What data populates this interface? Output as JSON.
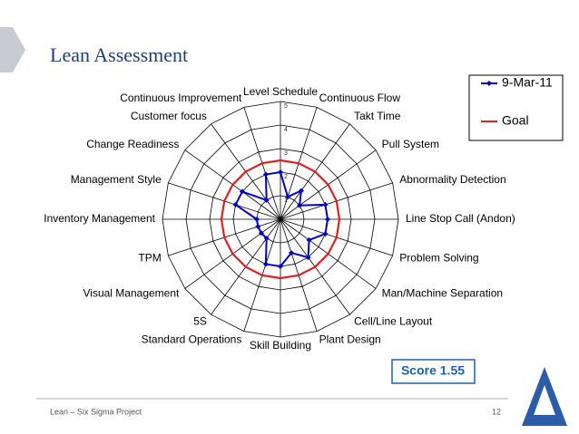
{
  "slide": {
    "title": "Lean Assessment",
    "footer": "Lean – Six Sigma Project",
    "page_number": "12",
    "score": "Score 1.55"
  },
  "chart_data": {
    "type": "radar",
    "categories": [
      "Level Schedule",
      "Continuous Flow",
      "Takt Time",
      "Pull System",
      "Abnormality Detection",
      "Line Stop Call (Andon)",
      "Problem Solving",
      "Man/Machine Separation",
      "Cell/Line Layout",
      "Plant Design",
      "Skill Building",
      "Standard Operations",
      "5S",
      "Visual Management",
      "TPM",
      "Inventory Management",
      "Management Style",
      "Change Readiness",
      "Customer focus",
      "Continuous Improvement"
    ],
    "series": [
      {
        "name": "9-Mar-11",
        "color": "#0000cc",
        "values": [
          2,
          1,
          1.5,
          1,
          2,
          2,
          2,
          1.5,
          2,
          1.5,
          2,
          2,
          1,
          1,
          1,
          1,
          2,
          2,
          1,
          2
        ]
      },
      {
        "name": "Goal",
        "color": "#e02020",
        "values": [
          2.5,
          2.5,
          2.5,
          2.5,
          2.5,
          2.5,
          2.5,
          2.5,
          2.5,
          2.5,
          2.5,
          2.5,
          2.5,
          2.5,
          2.5,
          2.5,
          2.5,
          2.5,
          2.5,
          2.5
        ]
      }
    ],
    "rlim": [
      0,
      5
    ],
    "rticks": [
      1,
      2,
      3,
      4,
      5
    ],
    "legend": "top-right"
  }
}
